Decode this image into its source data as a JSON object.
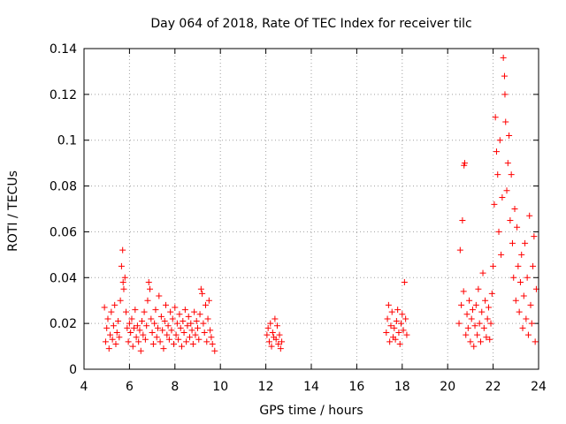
{
  "chart_data": {
    "type": "scatter",
    "title": "Day 064 of 2018, Rate Of TEC Index for receiver tilc",
    "xlabel": "GPS time / hours",
    "ylabel": "ROTI / TECUs",
    "xlim": [
      4,
      24
    ],
    "ylim": [
      0,
      0.14
    ],
    "xticks": [
      4,
      6,
      8,
      10,
      12,
      14,
      16,
      18,
      20,
      22,
      24
    ],
    "xtick_labels": [
      "4",
      "6",
      "8",
      "10",
      "12",
      "14",
      "16",
      "18",
      "20",
      "22",
      "24"
    ],
    "yticks": [
      0,
      0.02,
      0.04,
      0.06,
      0.08,
      0.1,
      0.12,
      0.14
    ],
    "ytick_labels": [
      "0",
      "0.02",
      "0.04",
      "0.06",
      "0.08",
      "0.1",
      "0.12",
      "0.14"
    ],
    "grid": true,
    "marker": "+",
    "color": "#ff0000",
    "series": [
      {
        "name": "ROTI",
        "points": [
          [
            4.9,
            0.027
          ],
          [
            4.95,
            0.012
          ],
          [
            5.0,
            0.018
          ],
          [
            5.05,
            0.022
          ],
          [
            5.1,
            0.009
          ],
          [
            5.15,
            0.015
          ],
          [
            5.2,
            0.025
          ],
          [
            5.25,
            0.013
          ],
          [
            5.3,
            0.019
          ],
          [
            5.35,
            0.028
          ],
          [
            5.4,
            0.011
          ],
          [
            5.45,
            0.016
          ],
          [
            5.5,
            0.021
          ],
          [
            5.55,
            0.014
          ],
          [
            5.6,
            0.03
          ],
          [
            5.65,
            0.045
          ],
          [
            5.7,
            0.052
          ],
          [
            5.72,
            0.038
          ],
          [
            5.75,
            0.035
          ],
          [
            5.8,
            0.04
          ],
          [
            5.85,
            0.025
          ],
          [
            5.9,
            0.018
          ],
          [
            5.95,
            0.012
          ],
          [
            6.0,
            0.02
          ],
          [
            6.05,
            0.016
          ],
          [
            6.1,
            0.022
          ],
          [
            6.15,
            0.01
          ],
          [
            6.2,
            0.018
          ],
          [
            6.25,
            0.026
          ],
          [
            6.3,
            0.014
          ],
          [
            6.35,
            0.019
          ],
          [
            6.4,
            0.012
          ],
          [
            6.45,
            0.017
          ],
          [
            6.5,
            0.008
          ],
          [
            6.55,
            0.021
          ],
          [
            6.6,
            0.015
          ],
          [
            6.65,
            0.025
          ],
          [
            6.7,
            0.013
          ],
          [
            6.75,
            0.019
          ],
          [
            6.8,
            0.03
          ],
          [
            6.85,
            0.038
          ],
          [
            6.9,
            0.035
          ],
          [
            6.95,
            0.022
          ],
          [
            7.0,
            0.016
          ],
          [
            7.05,
            0.011
          ],
          [
            7.1,
            0.02
          ],
          [
            7.15,
            0.026
          ],
          [
            7.2,
            0.014
          ],
          [
            7.25,
            0.018
          ],
          [
            7.3,
            0.032
          ],
          [
            7.35,
            0.012
          ],
          [
            7.4,
            0.023
          ],
          [
            7.45,
            0.017
          ],
          [
            7.5,
            0.009
          ],
          [
            7.55,
            0.021
          ],
          [
            7.6,
            0.028
          ],
          [
            7.65,
            0.015
          ],
          [
            7.7,
            0.019
          ],
          [
            7.75,
            0.013
          ],
          [
            7.8,
            0.025
          ],
          [
            7.85,
            0.017
          ],
          [
            7.9,
            0.022
          ],
          [
            7.95,
            0.011
          ],
          [
            8.0,
            0.027
          ],
          [
            8.05,
            0.015
          ],
          [
            8.1,
            0.02
          ],
          [
            8.15,
            0.013
          ],
          [
            8.2,
            0.024
          ],
          [
            8.25,
            0.018
          ],
          [
            8.3,
            0.01
          ],
          [
            8.35,
            0.021
          ],
          [
            8.4,
            0.016
          ],
          [
            8.45,
            0.026
          ],
          [
            8.5,
            0.012
          ],
          [
            8.55,
            0.019
          ],
          [
            8.6,
            0.023
          ],
          [
            8.65,
            0.014
          ],
          [
            8.7,
            0.02
          ],
          [
            8.75,
            0.017
          ],
          [
            8.8,
            0.011
          ],
          [
            8.85,
            0.025
          ],
          [
            8.9,
            0.015
          ],
          [
            8.95,
            0.021
          ],
          [
            9.0,
            0.018
          ],
          [
            9.05,
            0.013
          ],
          [
            9.1,
            0.024
          ],
          [
            9.15,
            0.035
          ],
          [
            9.2,
            0.033
          ],
          [
            9.25,
            0.02
          ],
          [
            9.3,
            0.016
          ],
          [
            9.35,
            0.028
          ],
          [
            9.4,
            0.012
          ],
          [
            9.45,
            0.022
          ],
          [
            9.5,
            0.03
          ],
          [
            9.55,
            0.017
          ],
          [
            9.6,
            0.014
          ],
          [
            9.65,
            0.011
          ],
          [
            9.75,
            0.008
          ],
          [
            12.05,
            0.015
          ],
          [
            12.1,
            0.018
          ],
          [
            12.15,
            0.012
          ],
          [
            12.2,
            0.02
          ],
          [
            12.25,
            0.01
          ],
          [
            12.3,
            0.016
          ],
          [
            12.35,
            0.014
          ],
          [
            12.4,
            0.022
          ],
          [
            12.45,
            0.013
          ],
          [
            12.5,
            0.019
          ],
          [
            12.55,
            0.011
          ],
          [
            12.6,
            0.015
          ],
          [
            12.65,
            0.009
          ],
          [
            12.7,
            0.012
          ],
          [
            17.3,
            0.016
          ],
          [
            17.35,
            0.022
          ],
          [
            17.4,
            0.028
          ],
          [
            17.45,
            0.012
          ],
          [
            17.5,
            0.019
          ],
          [
            17.55,
            0.025
          ],
          [
            17.6,
            0.014
          ],
          [
            17.65,
            0.018
          ],
          [
            17.7,
            0.013
          ],
          [
            17.75,
            0.021
          ],
          [
            17.8,
            0.026
          ],
          [
            17.85,
            0.016
          ],
          [
            17.9,
            0.011
          ],
          [
            17.95,
            0.02
          ],
          [
            18.0,
            0.024
          ],
          [
            18.05,
            0.017
          ],
          [
            18.1,
            0.038
          ],
          [
            18.15,
            0.022
          ],
          [
            18.2,
            0.015
          ],
          [
            20.5,
            0.02
          ],
          [
            20.55,
            0.052
          ],
          [
            20.6,
            0.028
          ],
          [
            20.65,
            0.065
          ],
          [
            20.7,
            0.034
          ],
          [
            20.72,
            0.089
          ],
          [
            20.75,
            0.09
          ],
          [
            20.8,
            0.015
          ],
          [
            20.85,
            0.024
          ],
          [
            20.9,
            0.018
          ],
          [
            20.95,
            0.03
          ],
          [
            21.0,
            0.012
          ],
          [
            21.05,
            0.022
          ],
          [
            21.1,
            0.026
          ],
          [
            21.15,
            0.01
          ],
          [
            21.2,
            0.019
          ],
          [
            21.25,
            0.028
          ],
          [
            21.3,
            0.015
          ],
          [
            21.35,
            0.035
          ],
          [
            21.4,
            0.02
          ],
          [
            21.45,
            0.012
          ],
          [
            21.5,
            0.025
          ],
          [
            21.55,
            0.042
          ],
          [
            21.6,
            0.018
          ],
          [
            21.65,
            0.03
          ],
          [
            21.7,
            0.014
          ],
          [
            21.75,
            0.022
          ],
          [
            21.8,
            0.027
          ],
          [
            21.85,
            0.013
          ],
          [
            21.9,
            0.02
          ],
          [
            21.95,
            0.033
          ],
          [
            22.0,
            0.045
          ],
          [
            22.05,
            0.072
          ],
          [
            22.1,
            0.11
          ],
          [
            22.15,
            0.095
          ],
          [
            22.2,
            0.085
          ],
          [
            22.25,
            0.06
          ],
          [
            22.3,
            0.1
          ],
          [
            22.35,
            0.05
          ],
          [
            22.4,
            0.075
          ],
          [
            22.45,
            0.136
          ],
          [
            22.5,
            0.128
          ],
          [
            22.52,
            0.12
          ],
          [
            22.55,
            0.108
          ],
          [
            22.6,
            0.078
          ],
          [
            22.65,
            0.09
          ],
          [
            22.7,
            0.102
          ],
          [
            22.75,
            0.065
          ],
          [
            22.8,
            0.085
          ],
          [
            22.85,
            0.055
          ],
          [
            22.9,
            0.04
          ],
          [
            22.95,
            0.07
          ],
          [
            23.0,
            0.03
          ],
          [
            23.05,
            0.062
          ],
          [
            23.1,
            0.045
          ],
          [
            23.15,
            0.025
          ],
          [
            23.2,
            0.038
          ],
          [
            23.25,
            0.05
          ],
          [
            23.3,
            0.018
          ],
          [
            23.35,
            0.032
          ],
          [
            23.4,
            0.055
          ],
          [
            23.45,
            0.022
          ],
          [
            23.5,
            0.04
          ],
          [
            23.55,
            0.015
          ],
          [
            23.6,
            0.067
          ],
          [
            23.65,
            0.028
          ],
          [
            23.7,
            0.02
          ],
          [
            23.75,
            0.045
          ],
          [
            23.8,
            0.058
          ],
          [
            23.85,
            0.012
          ],
          [
            23.9,
            0.035
          ]
        ]
      }
    ]
  }
}
